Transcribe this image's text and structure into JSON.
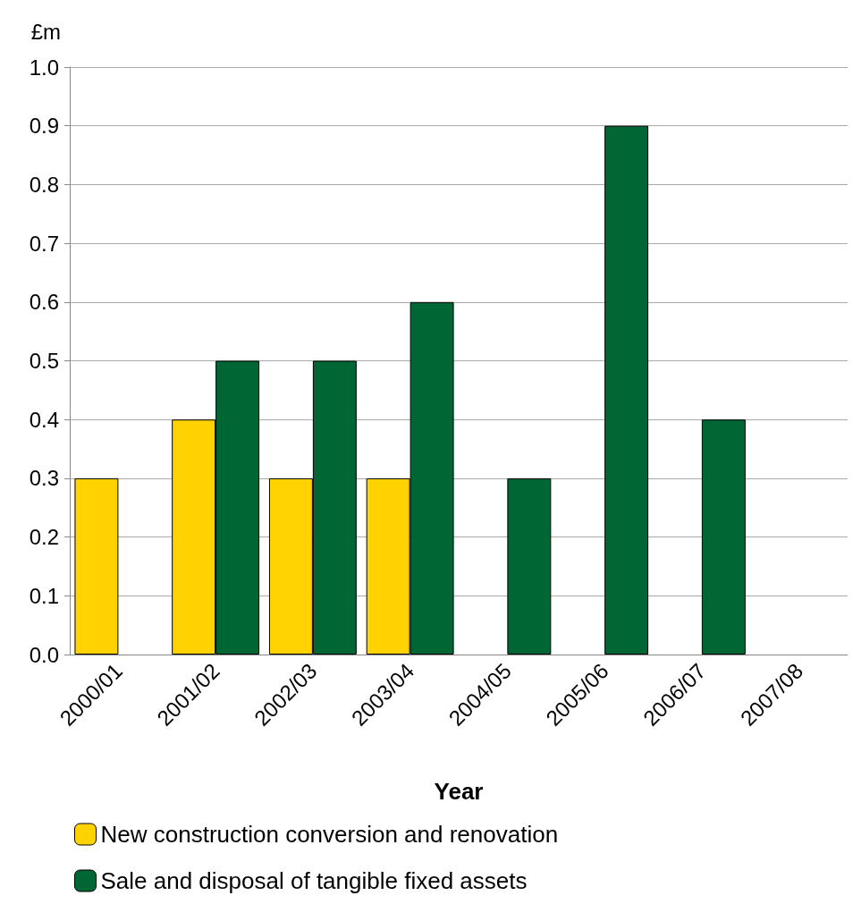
{
  "chart_data": {
    "type": "bar",
    "ylabel": "£m",
    "xlabel": "Year",
    "categories": [
      "2000/01",
      "2001/02",
      "2002/03",
      "2003/04",
      "2004/05",
      "2005/06",
      "2006/07",
      "2007/08"
    ],
    "series": [
      {
        "name": "New construction conversion and renovation",
        "color": "#ffd200",
        "values": [
          0.3,
          0.4,
          0.3,
          0.3,
          null,
          null,
          null,
          null
        ]
      },
      {
        "name": "Sale and disposal of tangible fixed assets",
        "color": "#006633",
        "values": [
          null,
          0.5,
          0.5,
          0.6,
          0.3,
          0.9,
          0.4,
          null
        ]
      }
    ],
    "ylim": [
      0,
      1
    ],
    "yticks": [
      {
        "value": 0,
        "label": "0.0"
      },
      {
        "value": 0.1,
        "label": "0.1"
      },
      {
        "value": 0.2,
        "label": "0.2"
      },
      {
        "value": 0.3,
        "label": "0.3"
      },
      {
        "value": 0.4,
        "label": "0.4"
      },
      {
        "value": 0.5,
        "label": "0.5"
      },
      {
        "value": 0.6,
        "label": "0.6"
      },
      {
        "value": 0.7,
        "label": "0.7"
      },
      {
        "value": 0.8,
        "label": "0.8"
      },
      {
        "value": 0.9,
        "label": "0.9"
      },
      {
        "value": 1,
        "label": "1.0"
      }
    ],
    "grid": "y",
    "legend": "bottom"
  }
}
